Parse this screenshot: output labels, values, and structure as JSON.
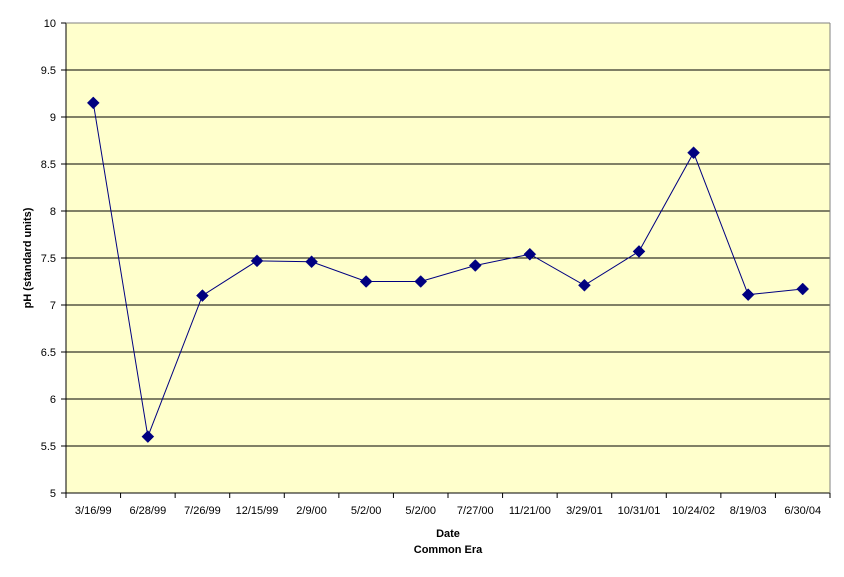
{
  "chart_data": {
    "type": "line",
    "title": "",
    "xlabel": "Date",
    "xlabel_line2": "Common Era",
    "ylabel": "pH (standard units)",
    "ylim": [
      5,
      10
    ],
    "ytick_step": 0.5,
    "ytick_labels": [
      "5",
      "5.5",
      "6",
      "6.5",
      "7",
      "7.5",
      "8",
      "8.5",
      "9",
      "9.5",
      "10"
    ],
    "grid": true,
    "legend": "none",
    "categories": [
      "3/16/99",
      "6/28/99",
      "7/26/99",
      "12/15/99",
      "2/9/00",
      "5/2/00",
      "5/2/00",
      "7/27/00",
      "11/21/00",
      "3/29/01",
      "10/31/01",
      "10/24/02",
      "8/19/03",
      "6/30/04"
    ],
    "series": [
      {
        "values": [
          9.15,
          5.6,
          7.1,
          7.47,
          7.46,
          7.25,
          7.25,
          7.42,
          7.54,
          7.21,
          7.57,
          8.62,
          7.11,
          7.17
        ]
      }
    ],
    "colors": {
      "plot_background": "#FFFFCC",
      "gridline": "#000000",
      "series_line": "#000080",
      "marker": "#000080"
    },
    "marker": "diamond"
  }
}
